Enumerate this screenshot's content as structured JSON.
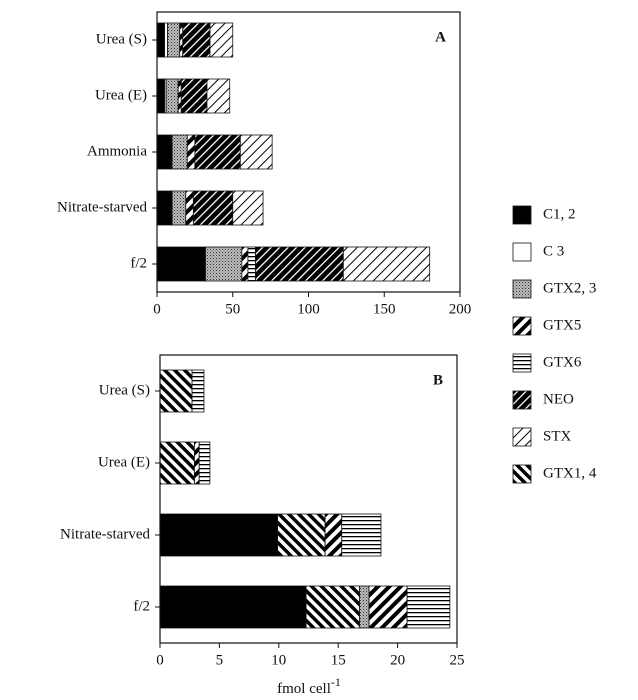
{
  "chart_data": [
    {
      "type": "bar",
      "orientation": "horizontal",
      "stacked": true,
      "annotation": "A",
      "categories": [
        "Urea (S)",
        "Urea (E)",
        "Ammonia",
        "Nitrate-starved",
        "f/2"
      ],
      "xlim": [
        0,
        200
      ],
      "xticks": [
        0,
        50,
        100,
        150,
        200
      ],
      "series": [
        {
          "name": "C1, 2",
          "pattern": "solid",
          "values": [
            5,
            5,
            10,
            10,
            32
          ]
        },
        {
          "name": "C 3",
          "pattern": "white",
          "values": [
            2,
            1,
            0,
            0,
            0
          ]
        },
        {
          "name": "GTX2, 3",
          "pattern": "stipple",
          "values": [
            8,
            8,
            10,
            9,
            24
          ]
        },
        {
          "name": "GTX5",
          "pattern": "diag-thick",
          "values": [
            2,
            2,
            5,
            5,
            4
          ]
        },
        {
          "name": "GTX6",
          "pattern": "hlines",
          "values": [
            0,
            0,
            0,
            0,
            5
          ]
        },
        {
          "name": "NEO",
          "pattern": "diag-dense",
          "values": [
            18,
            17,
            30,
            26,
            58
          ]
        },
        {
          "name": "STX",
          "pattern": "diag-light",
          "values": [
            15,
            15,
            21,
            20,
            57
          ]
        },
        {
          "name": "GTX1, 4",
          "pattern": "back-diag",
          "values": [
            0,
            0,
            0,
            0,
            0
          ]
        }
      ]
    },
    {
      "type": "bar",
      "orientation": "horizontal",
      "stacked": true,
      "annotation": "B",
      "categories": [
        "Urea (S)",
        "Urea (E)",
        "Nitrate-starved",
        "f/2"
      ],
      "xlim": [
        0,
        25
      ],
      "xticks": [
        0,
        5,
        10,
        15,
        20,
        25
      ],
      "xlabel": "fmol cell",
      "xlabel_exponent": "-1",
      "series": [
        {
          "name": "C1, 2",
          "pattern": "solid",
          "values": [
            0,
            0,
            9.9,
            12.3
          ]
        },
        {
          "name": "GTX1, 4",
          "pattern": "back-diag",
          "values": [
            2.7,
            2.9,
            4,
            4.5
          ]
        },
        {
          "name": "GTX2, 3",
          "pattern": "stipple",
          "values": [
            0,
            0,
            0,
            0.8
          ]
        },
        {
          "name": "GTX5",
          "pattern": "diag-thick",
          "values": [
            0,
            0.4,
            1.4,
            3.2
          ]
        },
        {
          "name": "GTX6",
          "pattern": "hlines",
          "values": [
            1,
            0.9,
            3.3,
            3.6
          ]
        }
      ]
    }
  ]
}
